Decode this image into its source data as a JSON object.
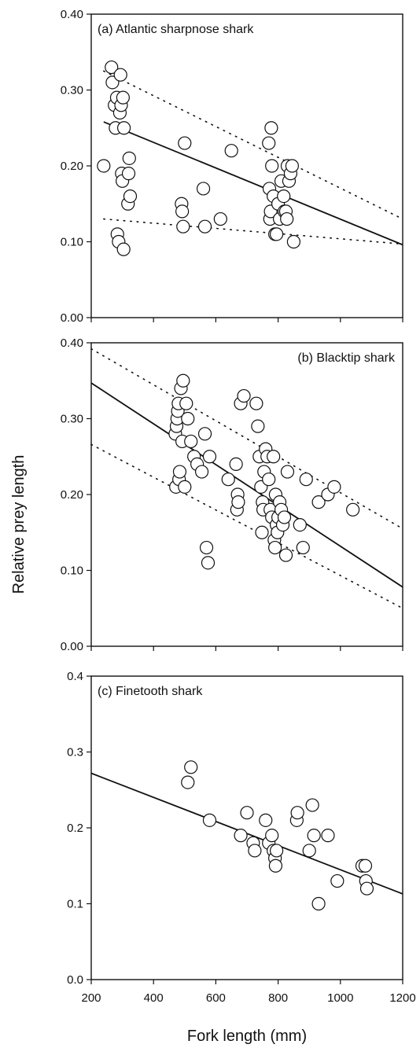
{
  "xlabel": "Fork length (mm)",
  "ylabel": "Relative prey length",
  "chart_data": [
    {
      "type": "scatter",
      "title": "(a) Atlantic sharpnose shark",
      "xlim": [
        200,
        1200
      ],
      "ylim": [
        0,
        0.4
      ],
      "yticks": [
        "0.00",
        "0.10",
        "0.20",
        "0.30",
        "0.40"
      ],
      "xticks": [],
      "x": [
        240,
        265,
        268,
        275,
        278,
        282,
        284,
        288,
        292,
        294,
        296,
        298,
        300,
        302,
        304,
        305,
        318,
        320,
        322,
        325,
        490,
        492,
        495,
        500,
        560,
        565,
        615,
        650,
        770,
        772,
        774,
        776,
        778,
        780,
        785,
        790,
        795,
        800,
        805,
        810,
        818,
        820,
        825,
        828,
        830,
        835,
        840,
        845,
        850
      ],
      "y": [
        0.2,
        0.33,
        0.31,
        0.28,
        0.25,
        0.29,
        0.11,
        0.1,
        0.27,
        0.32,
        0.28,
        0.19,
        0.18,
        0.29,
        0.09,
        0.25,
        0.15,
        0.19,
        0.21,
        0.16,
        0.15,
        0.14,
        0.12,
        0.23,
        0.17,
        0.12,
        0.13,
        0.22,
        0.23,
        0.17,
        0.13,
        0.14,
        0.25,
        0.2,
        0.16,
        0.11,
        0.11,
        0.15,
        0.13,
        0.18,
        0.16,
        0.14,
        0.14,
        0.13,
        0.2,
        0.18,
        0.19,
        0.2,
        0.1
      ],
      "fit": {
        "x": [
          240,
          1200
        ],
        "y": [
          0.258,
          0.096
        ]
      },
      "bounds": [
        {
          "x": [
            240,
            1200
          ],
          "y": [
            0.325,
            0.13
          ]
        },
        {
          "x": [
            240,
            1200
          ],
          "y": [
            0.13,
            0.097
          ]
        }
      ]
    },
    {
      "type": "scatter",
      "title": "(b) Blacktip shark",
      "xlim": [
        200,
        1200
      ],
      "ylim": [
        0,
        0.4
      ],
      "yticks": [
        "0.00",
        "0.10",
        "0.20",
        "0.30",
        "0.40"
      ],
      "xticks": [],
      "x": [
        470,
        472,
        474,
        476,
        478,
        480,
        482,
        484,
        488,
        492,
        495,
        500,
        505,
        510,
        520,
        530,
        540,
        555,
        565,
        570,
        575,
        580,
        640,
        665,
        668,
        670,
        672,
        680,
        690,
        730,
        735,
        740,
        745,
        748,
        750,
        752,
        755,
        760,
        765,
        770,
        775,
        780,
        785,
        788,
        790,
        792,
        795,
        798,
        800,
        805,
        810,
        815,
        820,
        825,
        830,
        870,
        880,
        890,
        930,
        960,
        980,
        1040
      ],
      "y": [
        0.28,
        0.21,
        0.29,
        0.3,
        0.31,
        0.32,
        0.22,
        0.23,
        0.34,
        0.27,
        0.35,
        0.21,
        0.32,
        0.3,
        0.27,
        0.25,
        0.24,
        0.23,
        0.28,
        0.13,
        0.11,
        0.25,
        0.22,
        0.24,
        0.18,
        0.2,
        0.19,
        0.32,
        0.33,
        0.32,
        0.29,
        0.25,
        0.21,
        0.15,
        0.19,
        0.18,
        0.23,
        0.26,
        0.25,
        0.22,
        0.18,
        0.17,
        0.25,
        0.14,
        0.13,
        0.2,
        0.16,
        0.15,
        0.17,
        0.19,
        0.18,
        0.16,
        0.17,
        0.12,
        0.23,
        0.16,
        0.13,
        0.22,
        0.19,
        0.2,
        0.21,
        0.18
      ],
      "fit": {
        "x": [
          200,
          1200
        ],
        "y": [
          0.347,
          0.078
        ]
      },
      "bounds": [
        {
          "x": [
            200,
            1200
          ],
          "y": [
            0.392,
            0.155
          ]
        },
        {
          "x": [
            200,
            1200
          ],
          "y": [
            0.266,
            0.05
          ]
        }
      ]
    },
    {
      "type": "scatter",
      "title": "(c) Finetooth shark",
      "xlim": [
        200,
        1200
      ],
      "ylim": [
        0,
        0.4
      ],
      "yticks": [
        "0.0",
        "0.1",
        "0.2",
        "0.3",
        "0.4"
      ],
      "xticks": [
        "200",
        "400",
        "600",
        "800",
        "1000",
        "1200"
      ],
      "x": [
        510,
        520,
        580,
        680,
        700,
        720,
        725,
        760,
        770,
        780,
        785,
        790,
        792,
        795,
        860,
        862,
        900,
        910,
        915,
        930,
        960,
        990,
        1070,
        1080,
        1082,
        1085
      ],
      "y": [
        0.26,
        0.28,
        0.21,
        0.19,
        0.22,
        0.18,
        0.17,
        0.21,
        0.18,
        0.19,
        0.17,
        0.16,
        0.15,
        0.17,
        0.21,
        0.22,
        0.17,
        0.23,
        0.19,
        0.1,
        0.19,
        0.13,
        0.15,
        0.15,
        0.13,
        0.12
      ],
      "fit": {
        "x": [
          200,
          1200
        ],
        "y": [
          0.272,
          0.113
        ]
      },
      "bounds": []
    }
  ]
}
